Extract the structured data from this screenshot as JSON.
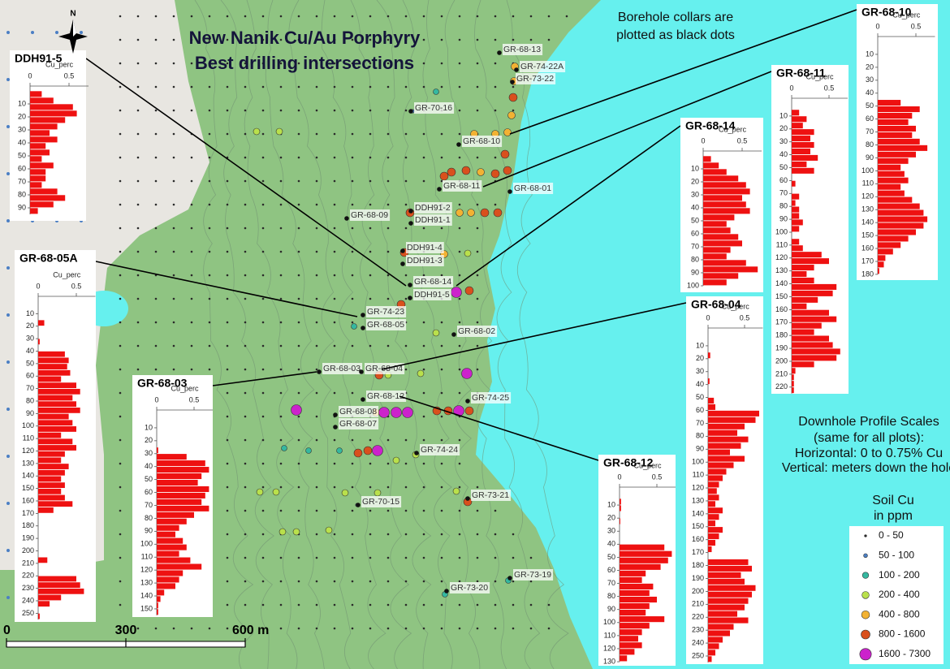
{
  "map": {
    "title": [
      "New Nanik Cu/Au Porphyry",
      "Best drilling intersections"
    ],
    "north_label": "N",
    "collar_note": [
      "Borehole collars are",
      "plotted as black dots"
    ],
    "scale_note": [
      "Downhole Profile Scales",
      "(same for all plots):",
      "Horizontal: 0 to 0.75% Cu",
      "Vertical: meters down the hole"
    ],
    "legend": {
      "title": [
        "Soil Cu",
        "in ppm"
      ],
      "items": [
        {
          "label": "0 - 50",
          "color": "#2a2a2a"
        },
        {
          "label": "50 - 100",
          "color": "#4b7fc4"
        },
        {
          "label": "100 - 200",
          "color": "#35b8a0"
        },
        {
          "label": "200 - 400",
          "color": "#b9e04c"
        },
        {
          "label": "400 - 800",
          "color": "#f2b233"
        },
        {
          "label": "800 - 1600",
          "color": "#d9501d"
        },
        {
          "label": "1600 - 7300",
          "color": "#cc22cc"
        }
      ]
    },
    "scale_bar": {
      "ticks": [
        0,
        300,
        {
          "value": 600,
          "label": "600 m"
        }
      ]
    },
    "collars": [
      "GR-68-13",
      "GR-74-22A",
      "GR-73-22",
      "GR-70-16",
      "GR-68-10",
      "GR-68-11",
      "GR-68-01",
      "GR-68-09",
      "DDH91-2",
      "DDH91-1",
      "DDH91-4",
      "DDH91-3",
      "GR-68-14",
      "DDH91-5",
      "GR-74-23",
      "GR-68-05",
      "GR-68-02",
      "GR-68-03",
      "GR-68-04",
      "GR-68-12",
      "GR-74-25",
      "GR-68-08",
      "GR-68-07",
      "GR-74-24",
      "GR-73-21",
      "GR-70-15",
      "GR-73-19",
      "GR-73-20"
    ]
  },
  "chart_data": [
    {
      "type": "bar",
      "title": "DDH91-5",
      "xlabel": "Cu_perc",
      "color": "#ee1111",
      "xlim": [
        0,
        0.75
      ],
      "xticks": [
        0,
        0.5
      ],
      "ylim": [
        0,
        95
      ],
      "yticks": [
        10,
        20,
        30,
        40,
        50,
        60,
        70,
        80,
        90
      ],
      "values": [
        0.15,
        0.3,
        0.55,
        0.6,
        0.45,
        0.35,
        0.25,
        0.35,
        0.2,
        0.25,
        0.15,
        0.3,
        0.2,
        0.2,
        0.15,
        0.35,
        0.45,
        0.3,
        0.1
      ]
    },
    {
      "type": "bar",
      "title": "GR-68-05A",
      "xlabel": "Cu_perc",
      "color": "#ee1111",
      "xlim": [
        0,
        0.75
      ],
      "xticks": [
        0,
        0.5
      ],
      "ylim": [
        0,
        255
      ],
      "yticks": [
        10,
        20,
        30,
        40,
        50,
        60,
        70,
        80,
        90,
        100,
        110,
        120,
        130,
        140,
        150,
        160,
        170,
        180,
        190,
        200,
        210,
        220,
        230,
        240,
        250
      ],
      "values": [
        0,
        0,
        0,
        0.08,
        0,
        0,
        0.02,
        0,
        0.35,
        0.4,
        0.38,
        0.42,
        0.3,
        0.5,
        0.55,
        0.45,
        0.5,
        0.55,
        0.4,
        0.45,
        0.5,
        0.3,
        0.45,
        0.5,
        0.35,
        0.3,
        0.4,
        0.35,
        0.3,
        0.35,
        0.3,
        0.35,
        0.45,
        0.2,
        0,
        0,
        0,
        0,
        0,
        0,
        0,
        0.12,
        0,
        0,
        0.5,
        0.55,
        0.6,
        0.3,
        0.15,
        0,
        0.02
      ]
    },
    {
      "type": "bar",
      "title": "GR-68-03",
      "xlabel": "Cu_perc",
      "color": "#ee1111",
      "xlim": [
        0,
        0.75
      ],
      "xticks": [
        0,
        0.5
      ],
      "ylim": [
        0,
        155
      ],
      "yticks": [
        10,
        20,
        30,
        40,
        50,
        60,
        70,
        80,
        90,
        100,
        110,
        120,
        130,
        140,
        150
      ],
      "values": [
        0,
        0,
        0,
        0,
        0,
        0.02,
        0.4,
        0.65,
        0.7,
        0.6,
        0.55,
        0.7,
        0.65,
        0.6,
        0.7,
        0.5,
        0.4,
        0.3,
        0.25,
        0.35,
        0.4,
        0.3,
        0.45,
        0.6,
        0.35,
        0.3,
        0.25,
        0.1,
        0.05,
        0.02,
        0.02
      ]
    },
    {
      "type": "bar",
      "title": "GR-68-14",
      "xlabel": "Cu_perc",
      "color": "#ee1111",
      "xlim": [
        0,
        0.75
      ],
      "xticks": [
        0,
        0.5
      ],
      "ylim": [
        0,
        100
      ],
      "yticks": [
        10,
        20,
        30,
        40,
        50,
        60,
        70,
        80,
        90,
        100
      ],
      "values": [
        0.1,
        0.2,
        0.3,
        0.45,
        0.55,
        0.6,
        0.5,
        0.55,
        0.6,
        0.4,
        0.3,
        0.35,
        0.45,
        0.5,
        0.35,
        0.3,
        0.55,
        0.7,
        0.45,
        0.3
      ]
    },
    {
      "type": "bar",
      "title": "GR-68-11",
      "xlabel": "Cu_perc",
      "color": "#ee1111",
      "xlim": [
        0,
        0.75
      ],
      "xticks": [
        0,
        0.5
      ],
      "ylim": [
        0,
        225
      ],
      "yticks": [
        10,
        20,
        30,
        40,
        50,
        60,
        70,
        80,
        90,
        100,
        110,
        120,
        130,
        140,
        150,
        160,
        170,
        180,
        190,
        200,
        210,
        220
      ],
      "values": [
        0,
        0.1,
        0.2,
        0.15,
        0.3,
        0.25,
        0.3,
        0.25,
        0.35,
        0.2,
        0.3,
        0,
        0.05,
        0,
        0.1,
        0.05,
        0.1,
        0.1,
        0.15,
        0.1,
        0,
        0.1,
        0.15,
        0.4,
        0.5,
        0.3,
        0.2,
        0.3,
        0.6,
        0.55,
        0.35,
        0.2,
        0.5,
        0.6,
        0.4,
        0.3,
        0.5,
        0.55,
        0.65,
        0.6,
        0.3,
        0.05,
        0.03,
        0.03,
        0.03
      ]
    },
    {
      "type": "bar",
      "title": "GR-68-10",
      "xlabel": "Cu_perc",
      "color": "#ee1111",
      "xlim": [
        0,
        0.75
      ],
      "xticks": [
        0,
        0.5
      ],
      "ylim": [
        0,
        180
      ],
      "yticks": [
        10,
        20,
        30,
        40,
        50,
        60,
        70,
        80,
        90,
        100,
        110,
        120,
        130,
        140,
        150,
        160,
        170,
        180
      ],
      "values": [
        0,
        0,
        0,
        0,
        0,
        0,
        0,
        0,
        0,
        0.3,
        0.55,
        0.45,
        0.4,
        0.5,
        0.45,
        0.55,
        0.65,
        0.5,
        0.4,
        0.3,
        0.35,
        0.4,
        0.3,
        0.35,
        0.45,
        0.55,
        0.6,
        0.65,
        0.6,
        0.5,
        0.4,
        0.3,
        0.2,
        0.1,
        0.08,
        0.02
      ]
    },
    {
      "type": "bar",
      "title": "GR-68-04",
      "xlabel": "Cu_perc",
      "color": "#ee1111",
      "xlim": [
        0,
        0.75
      ],
      "xticks": [
        0,
        0.5
      ],
      "ylim": [
        0,
        255
      ],
      "yticks": [
        10,
        20,
        30,
        40,
        50,
        60,
        70,
        80,
        90,
        100,
        110,
        120,
        130,
        140,
        150,
        160,
        170,
        180,
        190,
        200,
        210,
        220,
        230,
        240,
        250
      ],
      "values": [
        0,
        0,
        0,
        0.03,
        0,
        0,
        0,
        0.02,
        0,
        0,
        0.08,
        0.1,
        0.7,
        0.65,
        0.5,
        0.4,
        0.55,
        0.45,
        0.3,
        0.5,
        0.35,
        0.25,
        0.2,
        0.15,
        0.12,
        0.15,
        0.1,
        0.2,
        0.15,
        0.1,
        0.2,
        0.15,
        0.1,
        0.05,
        0,
        0.55,
        0.6,
        0.45,
        0.5,
        0.65,
        0.6,
        0.55,
        0.5,
        0.4,
        0.55,
        0.35,
        0.3,
        0.2,
        0.15,
        0.1,
        0.05
      ]
    },
    {
      "type": "bar",
      "title": "GR-68-12",
      "xlabel": "Cu_perc",
      "color": "#ee1111",
      "xlim": [
        0,
        0.75
      ],
      "xticks": [
        0,
        0.5
      ],
      "ylim": [
        0,
        130
      ],
      "yticks": [
        10,
        20,
        30,
        40,
        50,
        60,
        70,
        80,
        90,
        100,
        110,
        120,
        130
      ],
      "values": [
        0,
        0.02,
        0.02,
        0,
        0.01,
        0,
        0,
        0,
        0.6,
        0.7,
        0.65,
        0.55,
        0.35,
        0.3,
        0.45,
        0.4,
        0.5,
        0.4,
        0.35,
        0.6,
        0.4,
        0.3,
        0.25,
        0.3,
        0.2,
        0.1
      ]
    }
  ]
}
